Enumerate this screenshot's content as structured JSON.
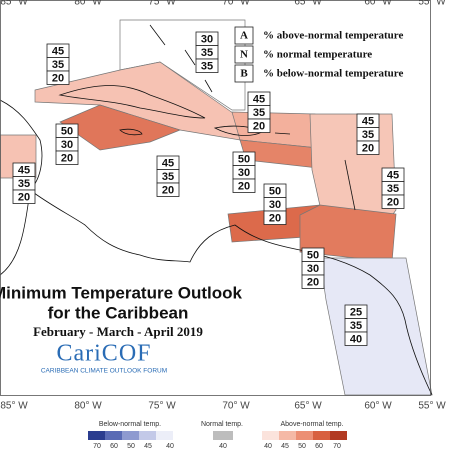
{
  "axis_labels": {
    "top": [
      "85° W",
      "80° W",
      "75° W",
      "70° W",
      "65° W",
      "60° W",
      "55° W"
    ],
    "bottom": [
      "85° W",
      "80° W",
      "75° W",
      "70° W",
      "65° W",
      "60° W",
      "55° W"
    ]
  },
  "legend": {
    "items": [
      {
        "letter": "A",
        "text": "% above-normal temperature"
      },
      {
        "letter": "N",
        "text": "% normal temperature"
      },
      {
        "letter": "B",
        "text": "% below-normal temperature"
      }
    ]
  },
  "title": {
    "line1": "Minimum Temperature Outlook",
    "line2": "for the Caribbean",
    "period": "February - March - April 2019"
  },
  "logo": {
    "name": "CariCOF",
    "tagline": "CARIBBEAN CLIMATE OUTLOOK FORUM"
  },
  "forecast_boxes": [
    {
      "above": 30,
      "normal": 35,
      "below": 35
    },
    {
      "above": 45,
      "normal": 35,
      "below": 20
    },
    {
      "above": 45,
      "normal": 35,
      "below": 20
    },
    {
      "above": 45,
      "normal": 35,
      "below": 20
    },
    {
      "above": 50,
      "normal": 30,
      "below": 20
    },
    {
      "above": 45,
      "normal": 35,
      "below": 20
    },
    {
      "above": 50,
      "normal": 30,
      "below": 20
    },
    {
      "above": 45,
      "normal": 35,
      "below": 20
    },
    {
      "above": 45,
      "normal": 35,
      "below": 20
    },
    {
      "above": 50,
      "normal": 30,
      "below": 20
    },
    {
      "above": 50,
      "normal": 30,
      "below": 20
    },
    {
      "above": 25,
      "normal": 35,
      "below": 40
    }
  ],
  "color_scale": {
    "below": {
      "label": "Below-normal temp.",
      "ticks": [
        70,
        60,
        50,
        45,
        40
      ]
    },
    "normal": {
      "label": "Normal temp.",
      "ticks": [
        40
      ]
    },
    "above": {
      "label": "Above-normal temp.",
      "ticks": [
        40,
        45,
        50,
        60,
        70
      ]
    }
  }
}
